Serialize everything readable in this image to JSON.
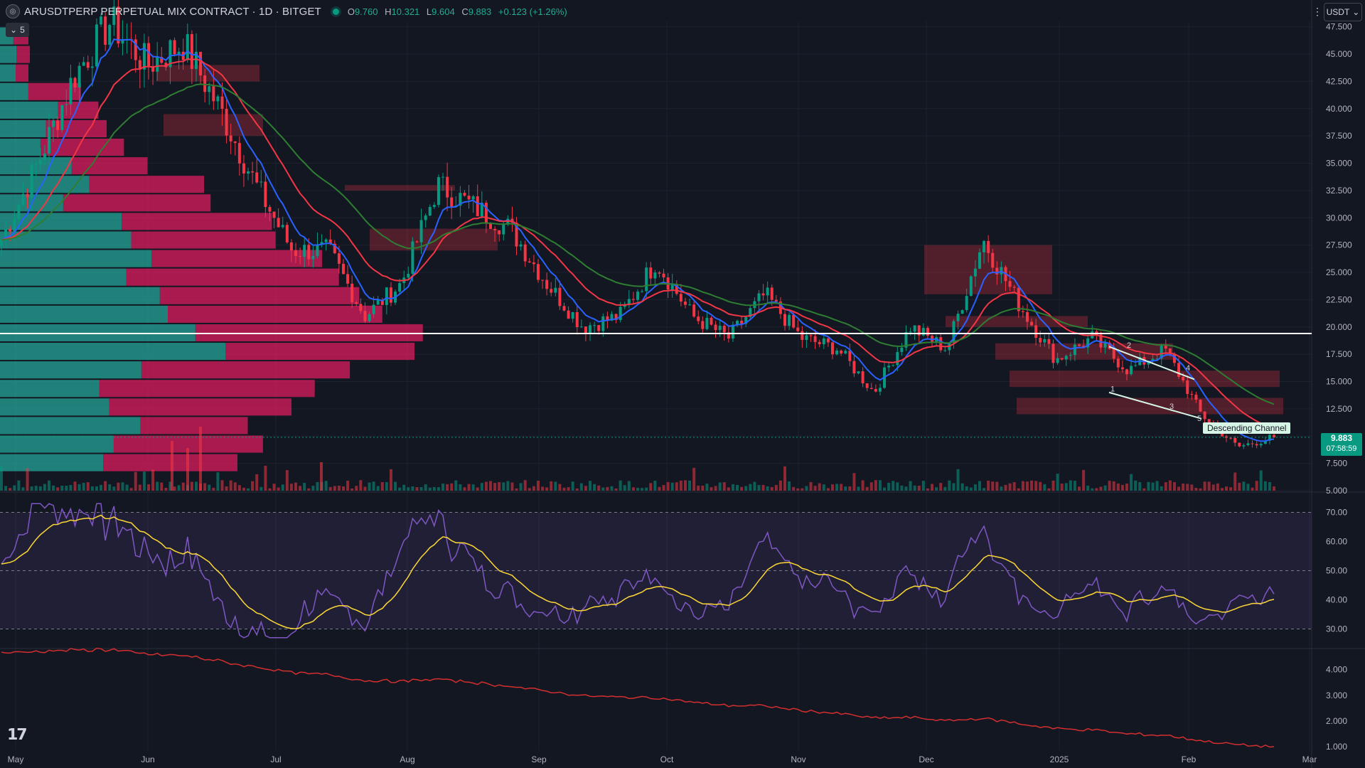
{
  "header": {
    "symbol_title": "ARUSDTPERP PERPETUAL MIX CONTRACT · 1D · BITGET",
    "ohlc": [
      {
        "k": "O",
        "v": "9.760"
      },
      {
        "k": "H",
        "v": "10.321"
      },
      {
        "k": "L",
        "v": "9.604"
      },
      {
        "k": "C",
        "v": "9.883"
      },
      {
        "k": "",
        "v": "+0.123 (+1.26%)"
      }
    ],
    "collapse_label": "5",
    "currency_select": "USDT"
  },
  "price_axis": [
    "47.500",
    "45.000",
    "42.500",
    "40.000",
    "37.500",
    "35.000",
    "32.500",
    "30.000",
    "27.500",
    "25.000",
    "22.500",
    "20.000",
    "17.500",
    "15.000",
    "12.500",
    "10.000",
    "7.500",
    "5.000"
  ],
  "rsi_axis": [
    "70.00",
    "60.00",
    "50.00",
    "40.00",
    "30.00"
  ],
  "osc_axis": [
    "4.000",
    "3.000",
    "2.000",
    "1.000"
  ],
  "time_axis": [
    "May",
    "Jun",
    "Jul",
    "Aug",
    "Sep",
    "Oct",
    "Nov",
    "Dec",
    "2025",
    "Feb",
    "Mar"
  ],
  "last_price": {
    "price": "9.883",
    "countdown": "07:58:59"
  },
  "annotations": {
    "channel_label": "Descending Channel",
    "wave_points": [
      "1",
      "2",
      "3",
      "4",
      "5"
    ]
  },
  "colors": {
    "background": "#131722",
    "bull": "#089981",
    "bear": "#f23645",
    "ema_fast": "#2962ff",
    "ema_mid": "#f23645",
    "ema_slow": "#2e7d32",
    "vp_up": "#26a69a",
    "vp_down": "#e91e63",
    "rsi_line": "#7e57c2",
    "rsi_ma": "#fdd835",
    "osc_line": "#d32f2f"
  },
  "chart_data": {
    "type": "candlestick",
    "symbol": "ARUSDTPERP",
    "interval": "1D",
    "ohlc_anchor_path": [
      [
        "May",
        28
      ],
      [
        "May",
        35
      ],
      [
        "May",
        43
      ],
      [
        "May",
        48
      ],
      [
        "Jun",
        44
      ],
      [
        "Jun",
        46
      ],
      [
        "Jun",
        40
      ],
      [
        "Jun",
        33
      ],
      [
        "Jun",
        27
      ],
      [
        "Jul",
        27
      ],
      [
        "Jul",
        21
      ],
      [
        "Jul",
        24
      ],
      [
        "Jul",
        33
      ],
      [
        "Jul",
        31
      ],
      [
        "Jul",
        29
      ],
      [
        "Aug",
        24
      ],
      [
        "Aug",
        20
      ],
      [
        "Aug",
        21
      ],
      [
        "Sep",
        26
      ],
      [
        "Sep",
        21
      ],
      [
        "Sep",
        19
      ],
      [
        "Oct",
        23
      ],
      [
        "Oct",
        19
      ],
      [
        "Oct",
        18
      ],
      [
        "Nov",
        14
      ],
      [
        "Nov",
        20
      ],
      [
        "Nov",
        18
      ],
      [
        "Dec",
        28
      ],
      [
        "Dec",
        22
      ],
      [
        "Dec",
        17
      ],
      [
        "2025",
        19
      ],
      [
        "2025",
        16
      ],
      [
        "2025",
        18
      ],
      [
        "Feb",
        12
      ],
      [
        "Feb",
        9
      ],
      [
        "Feb",
        9.883
      ]
    ],
    "last": {
      "open": 9.76,
      "high": 10.321,
      "low": 9.604,
      "close": 9.883
    },
    "y_range": [
      5,
      48
    ],
    "horizontal_line": 19.4,
    "rsi": {
      "levels": [
        70,
        50,
        30
      ],
      "y_range": [
        25,
        75
      ],
      "last_value": 42
    },
    "oscillator": {
      "y_range": [
        1,
        4.6
      ],
      "start": 4.5,
      "end": 1.2
    }
  }
}
